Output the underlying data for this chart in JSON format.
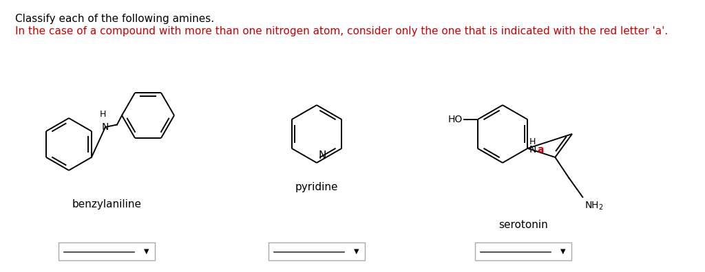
{
  "title_line1": "Classify each of the following amines.",
  "title_line2": "In the case of a compound with more than one nitrogen atom, consider only the one that is indicated with the red letter 'a'.",
  "title_color": "#000000",
  "title_red_color": "#cc0000",
  "bg_color": "#ffffff",
  "compound1_name": "benzylaniline",
  "compound2_name": "pyridine",
  "compound3_name": "serotonin",
  "lw": 1.4,
  "ring_gray": "#888888"
}
